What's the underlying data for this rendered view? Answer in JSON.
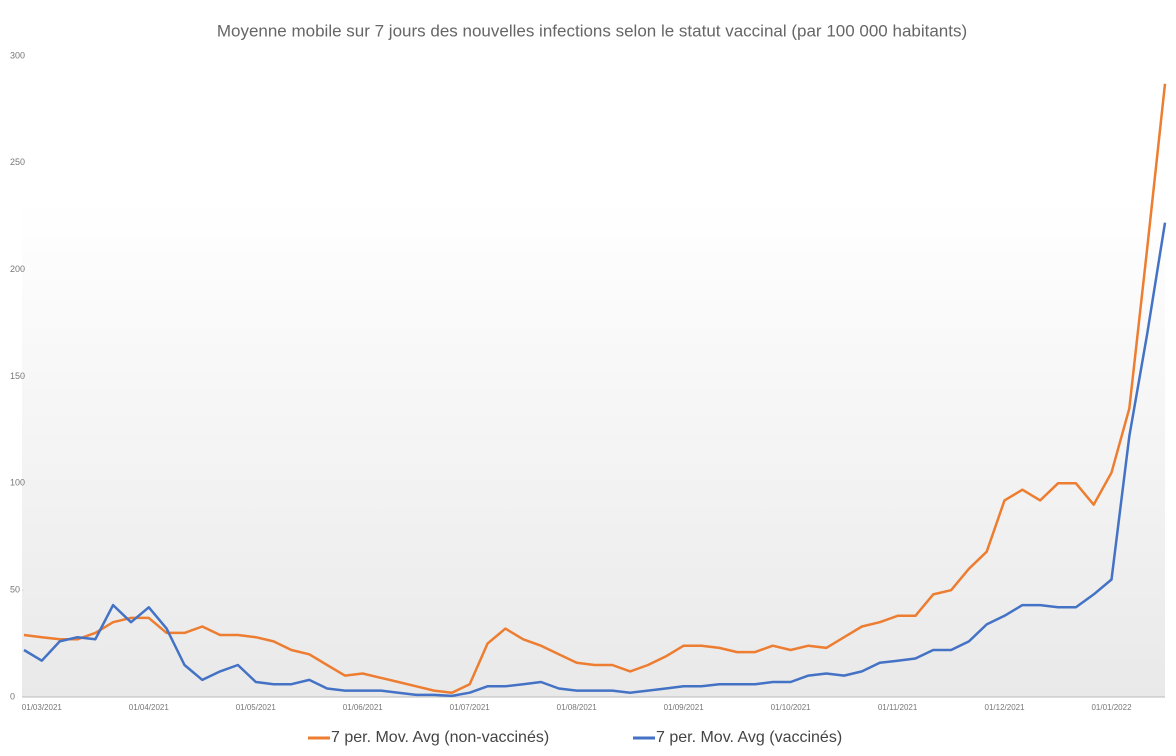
{
  "chart_data": {
    "type": "line",
    "title": "Moyenne mobile sur 7 jours des nouvelles infections selon le statut vaccinal (par 100 000 habitants)",
    "categories": [
      null,
      "01/03/2021",
      null,
      null,
      null,
      null,
      null,
      "01/04/2021",
      null,
      null,
      null,
      null,
      null,
      "01/05/2021",
      null,
      null,
      null,
      null,
      null,
      "01/06/2021",
      null,
      null,
      null,
      null,
      null,
      "01/07/2021",
      null,
      null,
      null,
      null,
      null,
      "01/08/2021",
      null,
      null,
      null,
      null,
      null,
      "01/09/2021",
      null,
      null,
      null,
      null,
      null,
      "01/10/2021",
      null,
      null,
      null,
      null,
      null,
      "01/11/2021",
      null,
      null,
      null,
      null,
      null,
      "01/12/2021",
      null,
      null,
      null,
      null,
      null,
      "01/01/2022",
      null,
      null,
      null
    ],
    "series": [
      {
        "name": "7 per. Mov. Avg (non-vaccinés)",
        "color": "#ed7d31",
        "values": [
          29,
          28,
          27,
          27,
          30,
          35,
          37,
          37,
          30,
          30,
          33,
          29,
          29,
          28,
          26,
          22,
          20,
          15,
          10,
          11,
          9,
          7,
          5,
          3,
          2,
          6,
          25,
          32,
          27,
          24,
          20,
          16,
          15,
          15,
          12,
          15,
          19,
          24,
          24,
          23,
          21,
          21,
          24,
          22,
          24,
          23,
          28,
          33,
          35,
          38,
          38,
          48,
          50,
          60,
          68,
          92,
          97,
          92,
          100,
          100,
          90,
          105,
          135,
          210,
          287
        ]
      },
      {
        "name": "7 per. Mov. Avg (vaccinés)",
        "color": "#4472c4",
        "values": [
          22,
          17,
          26,
          28,
          27,
          43,
          35,
          42,
          32,
          15,
          8,
          12,
          15,
          7,
          6,
          6,
          8,
          4,
          3,
          3,
          3,
          2,
          1,
          1,
          0.5,
          2,
          5,
          5,
          6,
          7,
          4,
          3,
          3,
          3,
          2,
          3,
          4,
          5,
          5,
          6,
          6,
          6,
          7,
          7,
          10,
          11,
          10,
          12,
          16,
          17,
          18,
          22,
          22,
          26,
          34,
          38,
          43,
          43,
          42,
          42,
          48,
          55,
          122,
          170,
          222
        ]
      }
    ],
    "ylim": [
      0,
      300
    ],
    "yticks": [
      0,
      50,
      100,
      150,
      200,
      250,
      300
    ]
  }
}
